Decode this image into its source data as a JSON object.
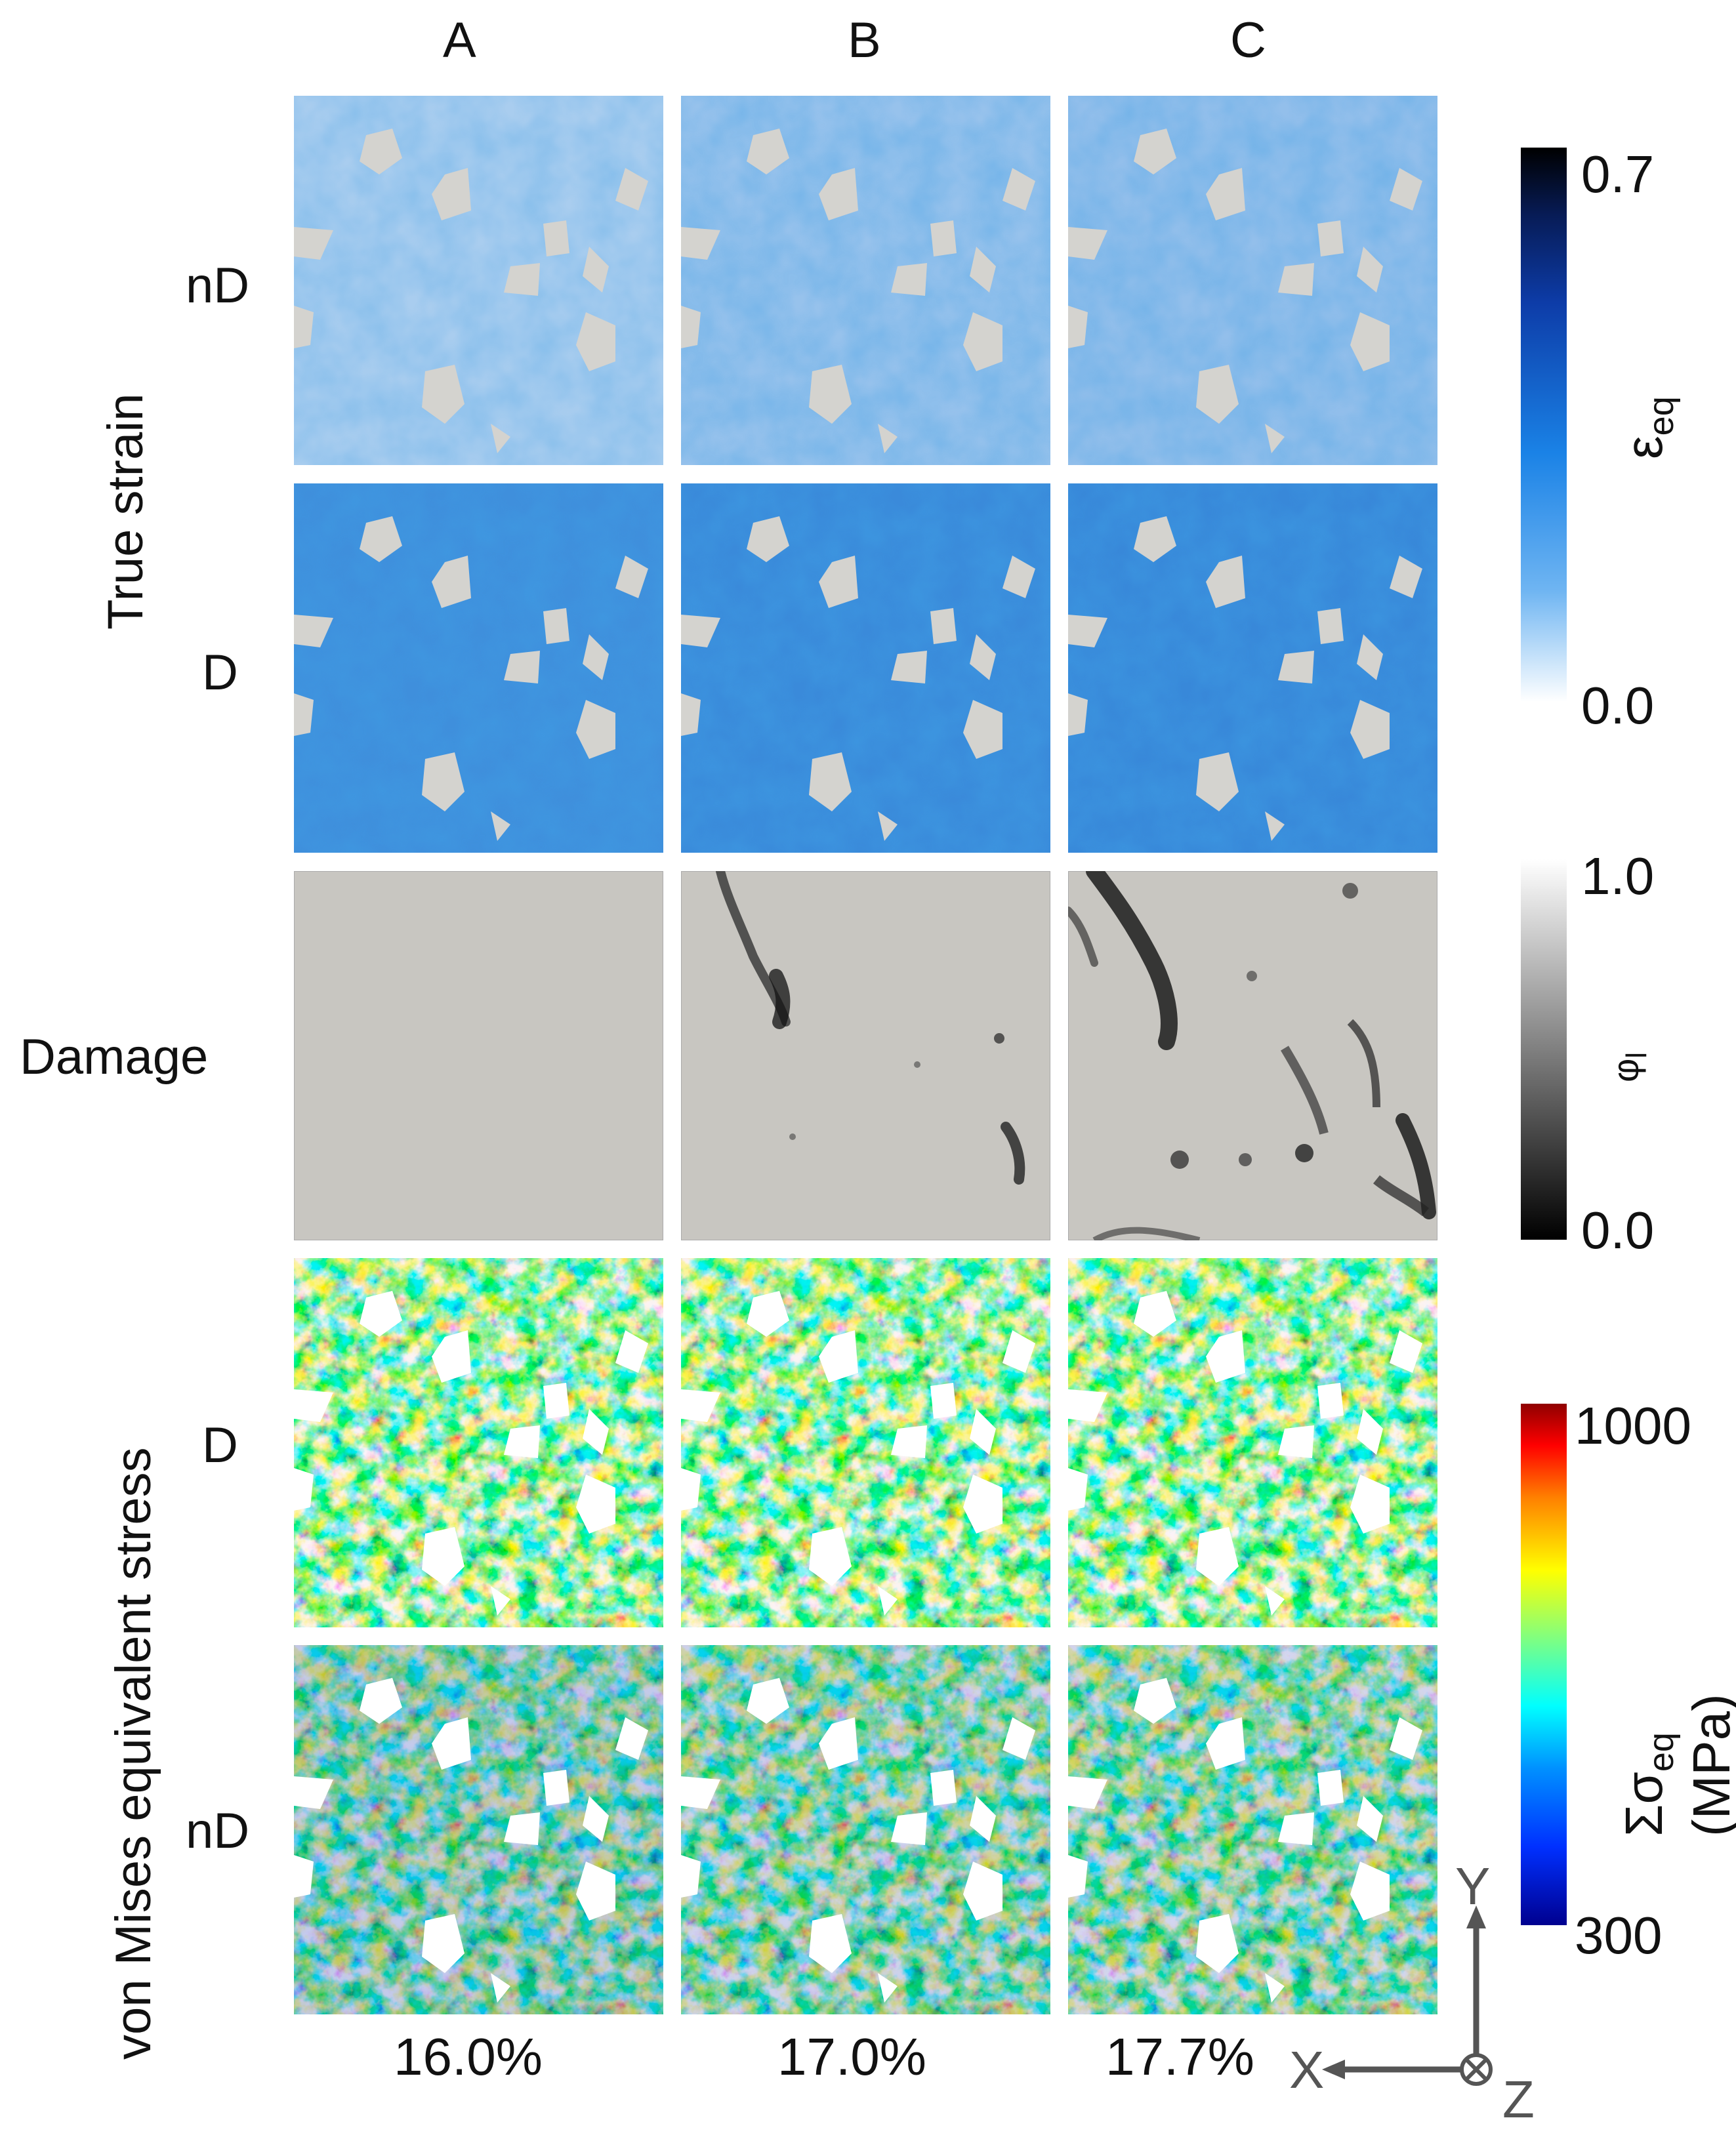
{
  "columns": [
    "A",
    "B",
    "C"
  ],
  "percentages": [
    "16.0%",
    "17.0%",
    "17.7%"
  ],
  "row_labels": {
    "strain_nD": "nD",
    "strain_D": "D",
    "damage": "Damage",
    "stress_D": "D",
    "stress_nD": "nD"
  },
  "group_labels": {
    "true_strain": "True strain",
    "von_mises": "von Mises equivalent stress"
  },
  "colorbars": {
    "strain": {
      "max": "0.7",
      "min": "0.0",
      "symbol": "ε",
      "sub": "eq",
      "colors": [
        "#ffffff",
        "#1a82e6",
        "#0a1d8a",
        "#000000"
      ]
    },
    "damage": {
      "max": "1.0",
      "min": "0.0",
      "symbol": "φ",
      "sub": "l",
      "colors": [
        "#ffffff",
        "#000000"
      ]
    },
    "stress": {
      "max": "1000",
      "min": "300",
      "symbol": "Σσ",
      "sub": "eq",
      "unit": " (MPa)",
      "colors": [
        "#00008f",
        "#0080ff",
        "#00ffff",
        "#80ff80",
        "#ffff00",
        "#ff8000",
        "#8f0000"
      ]
    }
  },
  "axes": {
    "x": "X",
    "y": "Y",
    "z": "Z"
  }
}
